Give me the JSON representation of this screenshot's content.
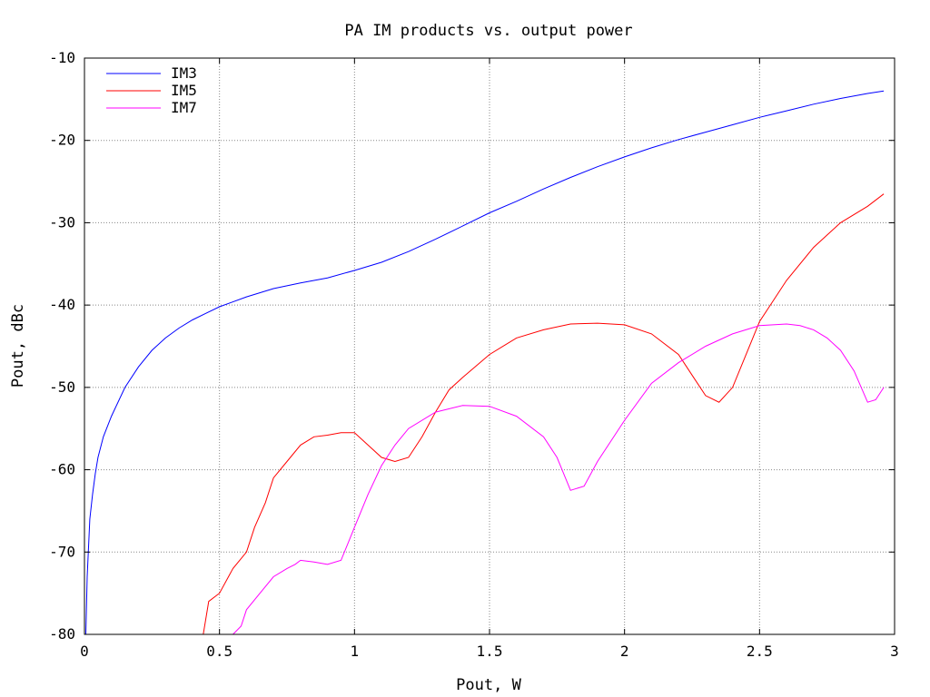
{
  "chart_data": {
    "type": "line",
    "title": "PA IM products vs. output power",
    "xlabel": "Pout, W",
    "ylabel": "Pout, dBc",
    "xlim": [
      0,
      3
    ],
    "ylim": [
      -80,
      -10
    ],
    "xticks": [
      0,
      0.5,
      1,
      1.5,
      2,
      2.5,
      3
    ],
    "xtick_labels": [
      "0",
      "0.5",
      "1",
      "1.5",
      "2",
      "2.5",
      "3"
    ],
    "yticks": [
      -80,
      -70,
      -60,
      -50,
      -40,
      -30,
      -20,
      -10
    ],
    "ytick_labels": [
      "-80",
      "-70",
      "-60",
      "-50",
      "-40",
      "-30",
      "-20",
      "-10"
    ],
    "grid": true,
    "legend_position": "top-left",
    "series": [
      {
        "name": "IM3",
        "color": "#0000ff",
        "x": [
          0.005,
          0.01,
          0.02,
          0.03,
          0.04,
          0.05,
          0.07,
          0.1,
          0.15,
          0.2,
          0.25,
          0.3,
          0.35,
          0.4,
          0.45,
          0.5,
          0.6,
          0.7,
          0.8,
          0.9,
          1.0,
          1.1,
          1.2,
          1.3,
          1.4,
          1.5,
          1.6,
          1.7,
          1.8,
          1.9,
          2.0,
          2.1,
          2.2,
          2.3,
          2.4,
          2.5,
          2.6,
          2.7,
          2.8,
          2.9,
          2.96
        ],
        "y": [
          -80,
          -73,
          -66,
          -63,
          -60.5,
          -58.5,
          -56,
          -53.5,
          -50,
          -47.5,
          -45.5,
          -44,
          -42.8,
          -41.8,
          -41,
          -40.2,
          -39,
          -38,
          -37.3,
          -36.7,
          -35.8,
          -34.8,
          -33.5,
          -32,
          -30.4,
          -28.8,
          -27.4,
          -25.9,
          -24.5,
          -23.2,
          -22,
          -20.9,
          -19.9,
          -19,
          -18.1,
          -17.2,
          -16.4,
          -15.6,
          -14.9,
          -14.3,
          -14
        ]
      },
      {
        "name": "IM5",
        "color": "#ff0000",
        "x": [
          0.42,
          0.44,
          0.46,
          0.5,
          0.55,
          0.6,
          0.63,
          0.67,
          0.7,
          0.75,
          0.8,
          0.85,
          0.9,
          0.95,
          1.0,
          1.05,
          1.1,
          1.15,
          1.2,
          1.25,
          1.3,
          1.35,
          1.4,
          1.5,
          1.6,
          1.7,
          1.8,
          1.9,
          2.0,
          2.1,
          2.2,
          2.25,
          2.3,
          2.35,
          2.4,
          2.45,
          2.5,
          2.6,
          2.7,
          2.8,
          2.9,
          2.96
        ],
        "y": [
          -80,
          -80,
          -76,
          -75,
          -72,
          -70,
          -67,
          -64,
          -61,
          -59,
          -57,
          -56,
          -55.8,
          -55.5,
          -55.5,
          -57,
          -58.5,
          -59,
          -58.5,
          -56,
          -53,
          -50.3,
          -48.8,
          -46,
          -44,
          -43,
          -42.3,
          -42.2,
          -42.4,
          -43.5,
          -46,
          -48.5,
          -51,
          -51.8,
          -50,
          -46,
          -42,
          -37,
          -33,
          -30,
          -28,
          -26.5
        ]
      },
      {
        "name": "IM7",
        "color": "#ff00ff",
        "x": [
          0.55,
          0.58,
          0.6,
          0.65,
          0.7,
          0.75,
          0.78,
          0.8,
          0.85,
          0.9,
          0.95,
          1.0,
          1.05,
          1.1,
          1.15,
          1.2,
          1.3,
          1.4,
          1.5,
          1.6,
          1.7,
          1.75,
          1.8,
          1.85,
          1.9,
          2.0,
          2.1,
          2.2,
          2.3,
          2.4,
          2.5,
          2.6,
          2.65,
          2.7,
          2.75,
          2.8,
          2.85,
          2.9,
          2.93,
          2.96
        ],
        "y": [
          -80,
          -79,
          -77,
          -75,
          -73,
          -72,
          -71.5,
          -71,
          -71.2,
          -71.5,
          -71,
          -67,
          -63,
          -59.5,
          -57,
          -55,
          -53,
          -52.2,
          -52.3,
          -53.5,
          -56,
          -58.5,
          -62.5,
          -62,
          -59,
          -54,
          -49.5,
          -47,
          -45,
          -43.5,
          -42.5,
          -42.3,
          -42.5,
          -43,
          -44,
          -45.5,
          -48,
          -51.8,
          -51.5,
          -50
        ]
      }
    ]
  }
}
